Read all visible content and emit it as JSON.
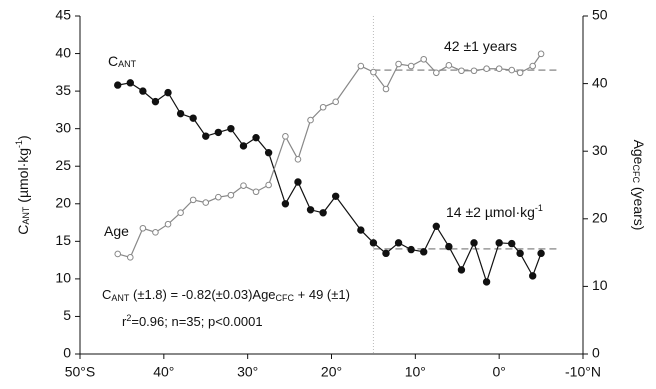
{
  "chart_data": {
    "type": "line",
    "xlim": [
      50,
      -10
    ],
    "xticks": [
      {
        "value": 50,
        "label": "50°S"
      },
      {
        "value": 40,
        "label": "40°"
      },
      {
        "value": 30,
        "label": "30°"
      },
      {
        "value": 20,
        "label": "20°"
      },
      {
        "value": 10,
        "label": "10°"
      },
      {
        "value": 0,
        "label": "0°"
      },
      {
        "value": -10,
        "label": "-10°N"
      }
    ],
    "ylim": [
      0,
      45
    ],
    "yticks": [
      0,
      5,
      10,
      15,
      20,
      25,
      30,
      35,
      40,
      45
    ],
    "y2lim": [
      0,
      50
    ],
    "y2ticks": [
      0,
      10,
      20,
      30,
      40,
      50
    ],
    "y_label": [
      {
        "text": "C"
      },
      {
        "text": "ANT",
        "sub": true
      },
      {
        "text": " (µmol·kg"
      },
      {
        "text": "-1",
        "sup": true
      },
      {
        "text": ")"
      }
    ],
    "y2_label": [
      {
        "text": "Age"
      },
      {
        "text": "CFC",
        "sub": true
      },
      {
        "text": " (years)"
      }
    ],
    "x": [
      45.5,
      44,
      42.5,
      41,
      39.5,
      38,
      36.5,
      35,
      33.5,
      32,
      30.5,
      29,
      27.5,
      25.5,
      24,
      22.5,
      21,
      19.5,
      16.5,
      15,
      13.5,
      12,
      10.5,
      9,
      7.5,
      6,
      4.5,
      3,
      1.5,
      0,
      -1.5,
      -2.5,
      -4,
      -5
    ],
    "series": [
      {
        "label": [
          {
            "text": "C"
          },
          {
            "text": "ANT",
            "sub": true
          }
        ],
        "color": "#111111",
        "marker": "filled",
        "values": [
          35.8,
          36.1,
          35,
          33.6,
          34.8,
          32,
          31.4,
          29,
          29.5,
          30,
          27.7,
          28.8,
          26.8,
          20,
          22.9,
          19.2,
          18.8,
          21,
          16.5,
          14.8,
          13.4,
          14.8,
          13.9,
          13.6,
          17,
          14.3,
          11.2,
          14.8,
          9.6,
          14.8,
          14.7,
          13.4,
          10.4,
          13.4
        ]
      },
      {
        "label": [
          {
            "text": "Age"
          }
        ],
        "color": "#888888",
        "marker": "open",
        "axis": "y2",
        "values": [
          14.8,
          14.3,
          18.6,
          18,
          19.2,
          20.9,
          22.8,
          22.4,
          23.2,
          23.5,
          24.9,
          24,
          25,
          32.2,
          28.8,
          34.6,
          36.5,
          37.3,
          42.6,
          41.7,
          39.2,
          42.9,
          42.6,
          43.6,
          41.6,
          42.7,
          41.9,
          41.9,
          42.2,
          42.2,
          42,
          41.6,
          42.6,
          44.4
        ]
      }
    ],
    "reference_lines": [
      {
        "axis": "y2",
        "value": 42,
        "x": [
          15,
          -7
        ],
        "color": "#999999"
      },
      {
        "axis": "y",
        "value": 14,
        "x": [
          15,
          -7
        ],
        "color": "#999999"
      }
    ],
    "vline_x": 15,
    "annotations": [
      [
        {
          "text": "42 ±1 years"
        }
      ],
      [
        {
          "text": "14 ±2 µmol·kg"
        },
        {
          "text": "-1",
          "sup": true
        }
      ],
      [
        {
          "text": "C"
        },
        {
          "text": "ANT",
          "sub": true
        },
        {
          "text": " (±1.8) = -0.82(±0.03)Age"
        },
        {
          "text": "CFC",
          "sub": true
        },
        {
          "text": " + 49 (±1)"
        }
      ],
      [
        {
          "text": "r"
        },
        {
          "text": "2",
          "sup": true
        },
        {
          "text": "=0.96;    n=35;    p<0.0001"
        }
      ]
    ]
  }
}
